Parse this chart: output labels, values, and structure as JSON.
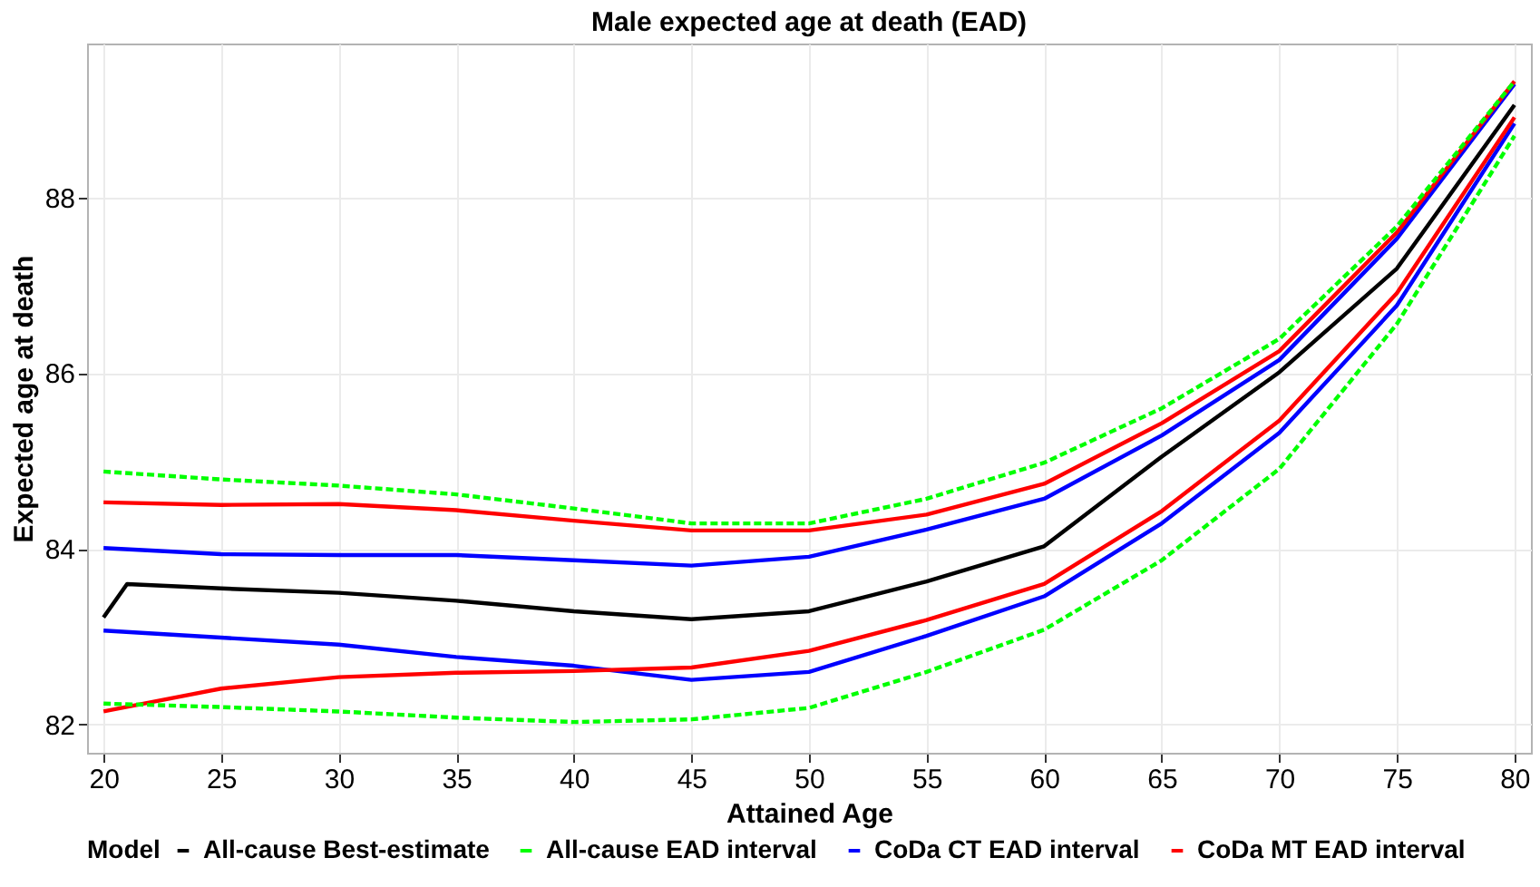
{
  "chart_data": {
    "type": "line",
    "title": "Male expected age at death (EAD)",
    "xlabel": "Attained Age",
    "ylabel": "Expected age at death",
    "legend_title": "Model",
    "legend": "bottom",
    "grid": true,
    "line_style": "solid",
    "xlim": [
      19.3,
      80.7
    ],
    "xticks": [
      20,
      25,
      30,
      35,
      40,
      45,
      50,
      55,
      60,
      65,
      70,
      75,
      80
    ],
    "ylim": [
      81.68,
      89.75
    ],
    "yticks": [
      82,
      84,
      86,
      88
    ],
    "series": [
      {
        "name": "All-cause Best-estimate",
        "color": "#000000",
        "x": [
          20,
          21,
          25,
          30,
          35,
          40,
          45,
          50,
          55,
          60,
          65,
          70,
          75,
          80
        ],
        "values": [
          83.22,
          83.6,
          83.55,
          83.5,
          83.41,
          83.29,
          83.2,
          83.29,
          83.63,
          84.03,
          85.05,
          86.01,
          87.19,
          89.05
        ]
      },
      {
        "name": "All-cause EAD interval",
        "color": "#00ff00",
        "line_style": "dashed",
        "x": [
          20,
          25,
          30,
          35,
          40,
          45,
          50,
          55,
          60,
          65,
          70,
          75,
          80
        ],
        "values": [
          84.88,
          84.79,
          84.72,
          84.62,
          84.46,
          84.29,
          84.29,
          84.57,
          84.98,
          85.6,
          86.39,
          87.67,
          89.32
        ]
      },
      {
        "color": "#00ff00",
        "line_style": "dashed",
        "x": [
          20,
          25,
          30,
          35,
          40,
          45,
          50,
          55,
          60,
          65,
          70,
          75,
          80
        ],
        "values": [
          82.24,
          82.2,
          82.15,
          82.08,
          82.03,
          82.06,
          82.19,
          82.6,
          83.08,
          83.87,
          84.91,
          86.56,
          88.7
        ]
      },
      {
        "name": "CoDa CT EAD interval",
        "color": "#0000ff",
        "x": [
          20,
          25,
          30,
          35,
          40,
          45,
          50,
          55,
          60,
          65,
          70,
          75,
          80
        ],
        "values": [
          84.01,
          83.94,
          83.93,
          83.93,
          83.87,
          83.81,
          83.91,
          84.22,
          84.57,
          85.29,
          86.15,
          87.53,
          89.29
        ]
      },
      {
        "color": "#0000ff",
        "x": [
          20,
          25,
          30,
          35,
          40,
          45,
          50,
          55,
          60,
          65,
          70,
          75,
          80
        ],
        "values": [
          83.07,
          82.99,
          82.91,
          82.77,
          82.67,
          82.51,
          82.6,
          83.01,
          83.46,
          84.29,
          85.32,
          86.77,
          88.84
        ]
      },
      {
        "name": "CoDa MT EAD interval",
        "color": "#ff0000",
        "x": [
          20,
          25,
          30,
          35,
          40,
          45,
          50,
          55,
          60,
          65,
          70,
          75,
          80
        ],
        "values": [
          84.53,
          84.5,
          84.51,
          84.44,
          84.32,
          84.21,
          84.21,
          84.39,
          84.74,
          85.43,
          86.25,
          87.6,
          89.32
        ]
      },
      {
        "color": "#ff0000",
        "x": [
          20,
          25,
          30,
          35,
          40,
          45,
          50,
          55,
          60,
          65,
          70,
          75,
          80
        ],
        "values": [
          82.15,
          82.41,
          82.54,
          82.59,
          82.61,
          82.65,
          82.84,
          83.19,
          83.6,
          84.43,
          85.46,
          86.91,
          88.91
        ]
      }
    ]
  }
}
